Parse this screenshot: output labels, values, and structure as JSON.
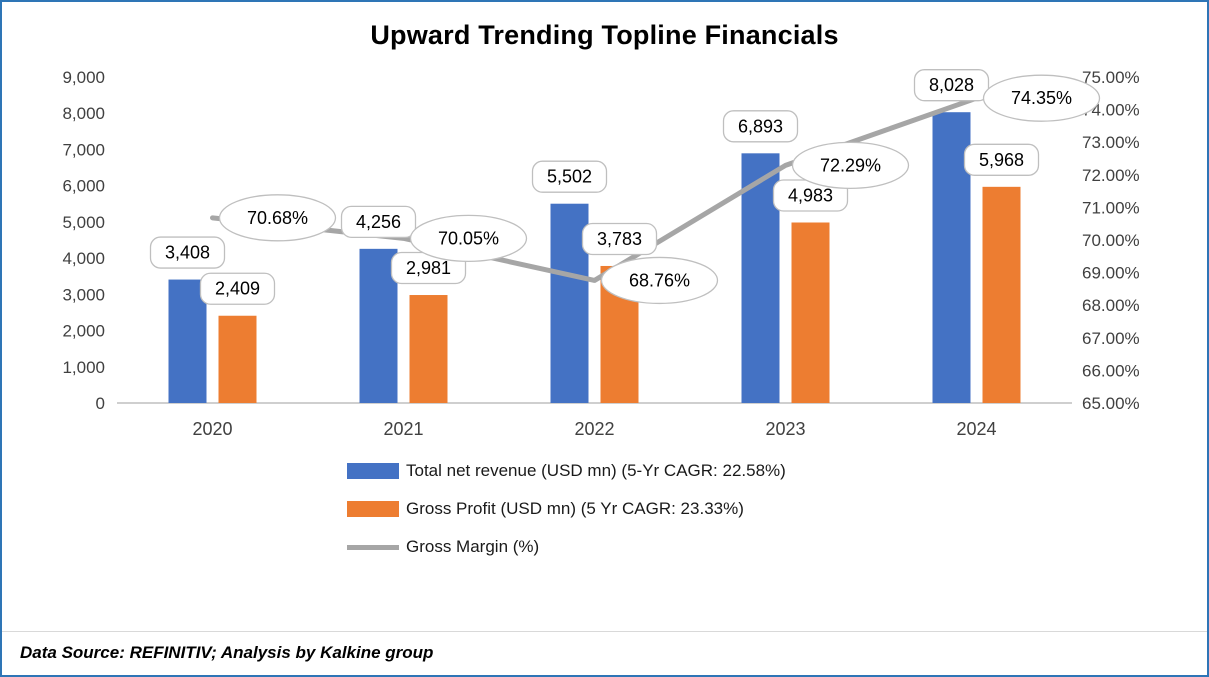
{
  "title": "Upward Trending Topline Financials",
  "footer": "Data Source: REFINITIV; Analysis by Kalkine group",
  "colors": {
    "frame_border": "#2E75B6",
    "revenue_bar": "#4472C4",
    "profit_bar": "#ED7D31",
    "margin_line": "#A6A6A6",
    "callout_border": "#BFBFBF",
    "axis_text": "#404040"
  },
  "legend": [
    {
      "label": "Total net revenue (USD mn) (5-Yr CAGR: 22.58%)",
      "type": "bar",
      "color": "#4472C4"
    },
    {
      "label": "Gross Profit (USD mn) (5 Yr CAGR: 23.33%)",
      "type": "bar",
      "color": "#ED7D31"
    },
    {
      "label": "Gross Margin (%)",
      "type": "line",
      "color": "#A6A6A6"
    }
  ],
  "chart_data": {
    "type": "combo-bar-line",
    "title": "Upward Trending Topline Financials",
    "categories": [
      "2020",
      "2021",
      "2022",
      "2023",
      "2024"
    ],
    "series": [
      {
        "name": "Total net revenue (USD mn)",
        "key": "revenue",
        "type": "bar",
        "axis": "left",
        "color": "#4472C4",
        "values": [
          3408,
          4256,
          5502,
          6893,
          8028
        ],
        "labels": [
          "3,408",
          "4,256",
          "5,502",
          "6,893",
          "8,028"
        ]
      },
      {
        "name": "Gross Profit (USD mn)",
        "key": "profit",
        "type": "bar",
        "axis": "left",
        "color": "#ED7D31",
        "values": [
          2409,
          2981,
          3783,
          4983,
          5968
        ],
        "labels": [
          "2,409",
          "2,981",
          "3,783",
          "4,983",
          "5,968"
        ]
      },
      {
        "name": "Gross Margin (%)",
        "key": "margin",
        "type": "line",
        "axis": "right",
        "color": "#A6A6A6",
        "values": [
          70.68,
          70.05,
          68.76,
          72.29,
          74.35
        ],
        "labels": [
          "70.68%",
          "70.05%",
          "68.76%",
          "72.29%",
          "74.35%"
        ]
      }
    ],
    "left_axis": {
      "min": 0,
      "max": 9000,
      "step": 1000,
      "tick_labels": [
        "0",
        "1,000",
        "2,000",
        "3,000",
        "4,000",
        "5,000",
        "6,000",
        "7,000",
        "8,000",
        "9,000"
      ]
    },
    "right_axis": {
      "min": 65,
      "max": 75,
      "step": 1,
      "tick_labels": [
        "65.00%",
        "66.00%",
        "67.00%",
        "68.00%",
        "69.00%",
        "70.00%",
        "71.00%",
        "72.00%",
        "73.00%",
        "74.00%",
        "75.00%"
      ]
    },
    "grid": false,
    "legend_position": "bottom"
  }
}
